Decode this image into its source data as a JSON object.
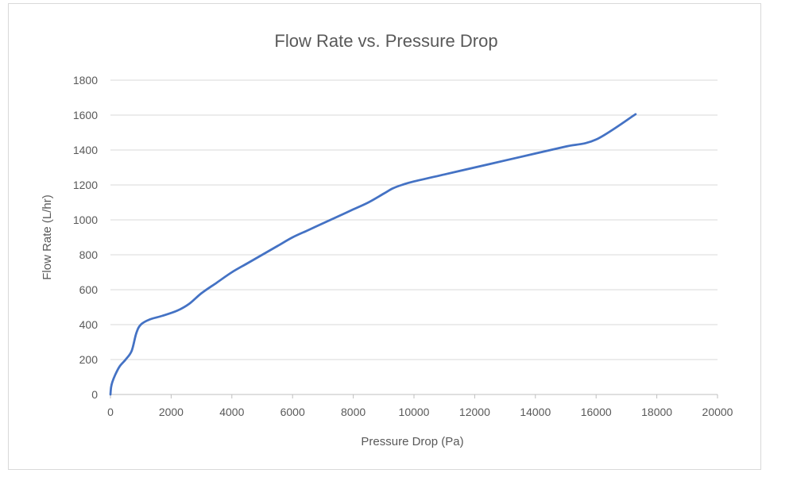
{
  "chart_data": {
    "type": "line",
    "title": "Flow Rate vs. Pressure Drop",
    "xlabel": "Pressure Drop (Pa)",
    "ylabel": "Flow Rate (L/hr)",
    "xlim": [
      0,
      20000
    ],
    "ylim": [
      0,
      1800
    ],
    "xticks": [
      0,
      2000,
      4000,
      6000,
      8000,
      10000,
      12000,
      14000,
      16000,
      18000,
      20000
    ],
    "yticks": [
      0,
      200,
      400,
      600,
      800,
      1000,
      1200,
      1400,
      1600,
      1800
    ],
    "grid": "horizontal",
    "legend": "none",
    "series": [
      {
        "color": "#4472c4",
        "x": [
          0,
          20,
          60,
          150,
          300,
          500,
          700,
          850,
          1000,
          1300,
          1700,
          2200,
          2600,
          3000,
          3500,
          4000,
          4500,
          5000,
          5500,
          6000,
          6500,
          7000,
          7500,
          8000,
          8500,
          9000,
          9300,
          9600,
          10000,
          11000,
          12000,
          13000,
          14000,
          15000,
          16000,
          17300
        ],
        "y": [
          0,
          40,
          70,
          110,
          160,
          200,
          250,
          350,
          400,
          430,
          450,
          480,
          520,
          580,
          640,
          700,
          750,
          800,
          850,
          900,
          940,
          980,
          1020,
          1060,
          1100,
          1150,
          1180,
          1200,
          1220,
          1260,
          1300,
          1340,
          1380,
          1420,
          1460,
          1605
        ]
      }
    ]
  }
}
